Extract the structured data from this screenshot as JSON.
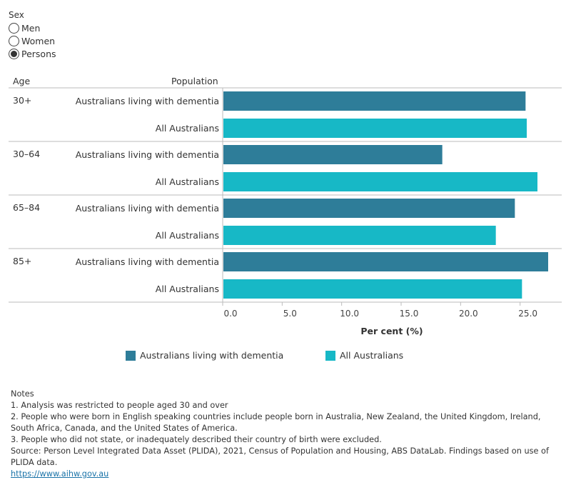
{
  "filter": {
    "title": "Sex",
    "options": [
      {
        "label": "Men",
        "selected": false
      },
      {
        "label": "Women",
        "selected": false
      },
      {
        "label": "Persons",
        "selected": true
      }
    ]
  },
  "headers": {
    "age": "Age",
    "population": "Population"
  },
  "chart_data": {
    "type": "bar",
    "orientation": "horizontal",
    "groups": [
      "30+",
      "30–64",
      "65–84",
      "85+"
    ],
    "series": [
      {
        "name": "Australians living with dementia",
        "color": "#2e7d99",
        "values": [
          25.4,
          18.4,
          24.5,
          27.3
        ]
      },
      {
        "name": "All Australians",
        "color": "#17b8c6",
        "values": [
          25.5,
          26.4,
          22.9,
          25.1
        ]
      }
    ],
    "xlabel": "Per cent (%)",
    "xticks": [
      "0.0",
      "5.0",
      "10.0",
      "15.0",
      "20.0",
      "25.0"
    ],
    "xlim": [
      0,
      28.5
    ],
    "grid": false,
    "legend_placement": "bottom"
  },
  "legend": [
    "Australians living with dementia",
    "All Australians"
  ],
  "notes": {
    "title": "Notes",
    "lines": [
      "1. Analysis was restricted to people aged 30 and over",
      "2. People who were born in English speaking countries include people born in Australia, New Zealand, the United Kingdom, Ireland, South Africa, Canada, and the United States of America.",
      "3. People who did not state, or inadequately described their country of birth were excluded.",
      "Source: Person Level Integrated Data Asset (PLIDA), 2021, Census of Population and Housing, ABS DataLab. Findings based on use of PLIDA data."
    ],
    "link": "https://www.aihw.gov.au"
  }
}
